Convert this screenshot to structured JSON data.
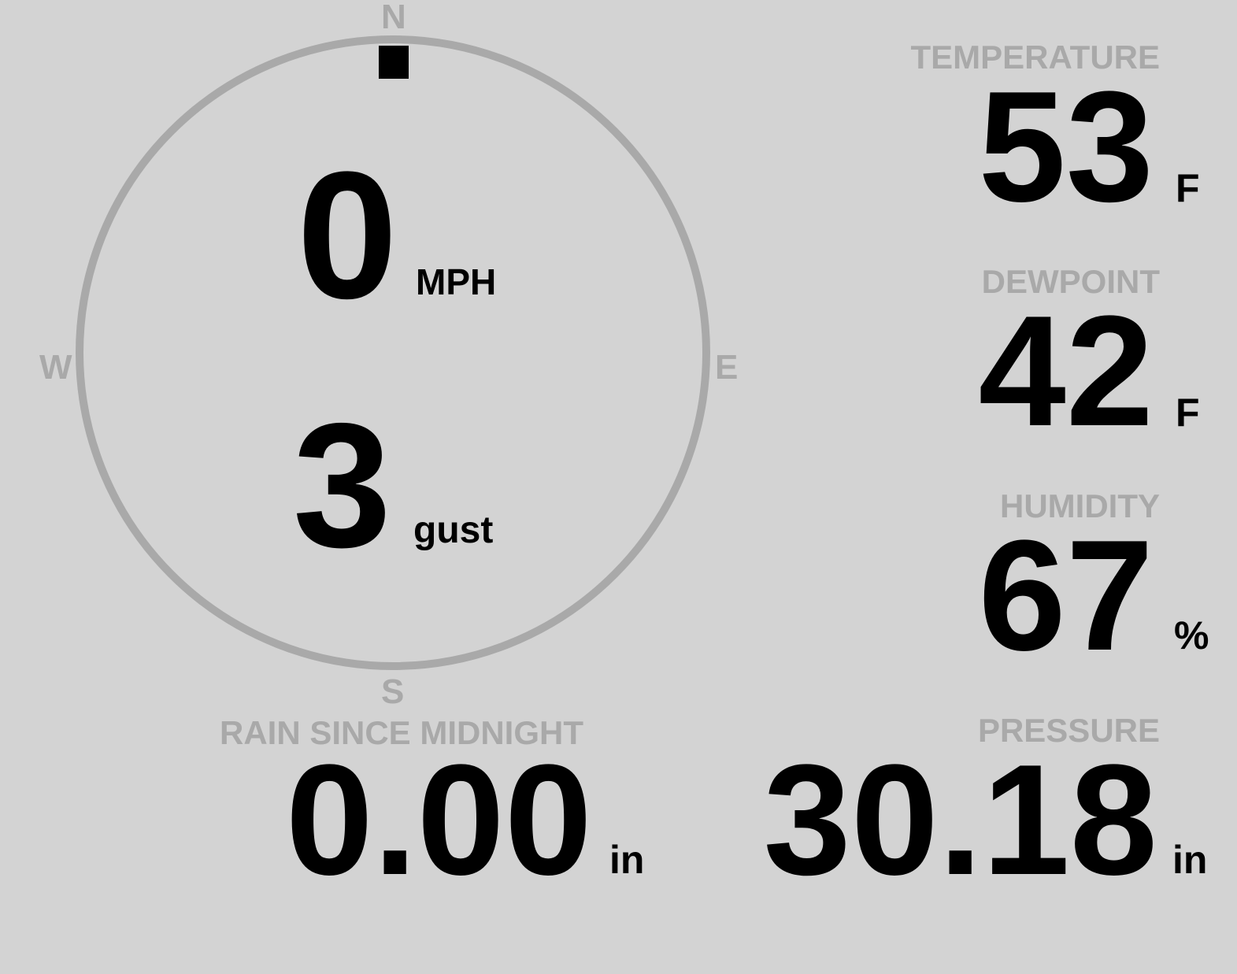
{
  "colors": {
    "background": "#d3d3d3",
    "label": "#a9a9a9",
    "value": "#000000",
    "ring": "#a9a9a9"
  },
  "wind": {
    "speed": "0",
    "speed_unit": "MPH",
    "gust": "3",
    "gust_unit": "gust",
    "direction_deg": 0,
    "compass": {
      "n": "N",
      "s": "S",
      "e": "E",
      "w": "W"
    }
  },
  "temperature": {
    "label": "TEMPERATURE",
    "value": "53",
    "unit": "F"
  },
  "dewpoint": {
    "label": "DEWPOINT",
    "value": "42",
    "unit": "F"
  },
  "humidity": {
    "label": "HUMIDITY",
    "value": "67",
    "unit": "%"
  },
  "pressure": {
    "label": "PRESSURE",
    "value": "30.18",
    "unit": "in"
  },
  "rain": {
    "label": "RAIN SINCE MIDNIGHT",
    "value": "0.00",
    "unit": "in"
  }
}
